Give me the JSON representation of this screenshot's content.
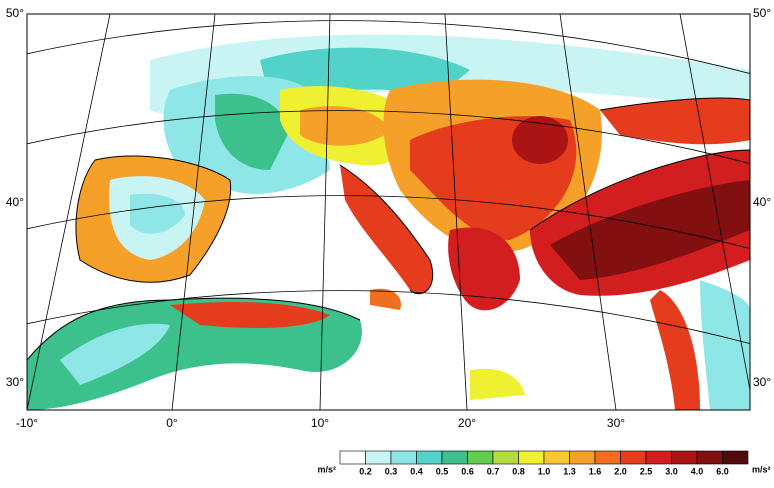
{
  "map": {
    "lat_labels_left": [
      "50°",
      "40°",
      "30°"
    ],
    "lat_labels_right": [
      "50°",
      "40°",
      "30°"
    ],
    "lon_labels": [
      "-10°",
      "0°",
      "10°",
      "20°",
      "30°"
    ],
    "legend": {
      "unit_left": "m/s²",
      "unit_right": "m/s²",
      "labels": [
        "0.2",
        "0.3",
        "0.4",
        "0.5",
        "0.6",
        "0.7",
        "0.8",
        "1.0",
        "1.3",
        "1.6",
        "2.0",
        "2.5",
        "3.0",
        "4.0",
        "6.0"
      ],
      "colors": [
        "#ffffff",
        "#c8f4f4",
        "#8ee6e6",
        "#52d2c8",
        "#3cc08c",
        "#64cc50",
        "#b4dc3c",
        "#f0f032",
        "#f5c832",
        "#f5a028",
        "#f06e1e",
        "#e63c1e",
        "#d21e1e",
        "#aa1414",
        "#821010",
        "#500a0a"
      ]
    }
  }
}
